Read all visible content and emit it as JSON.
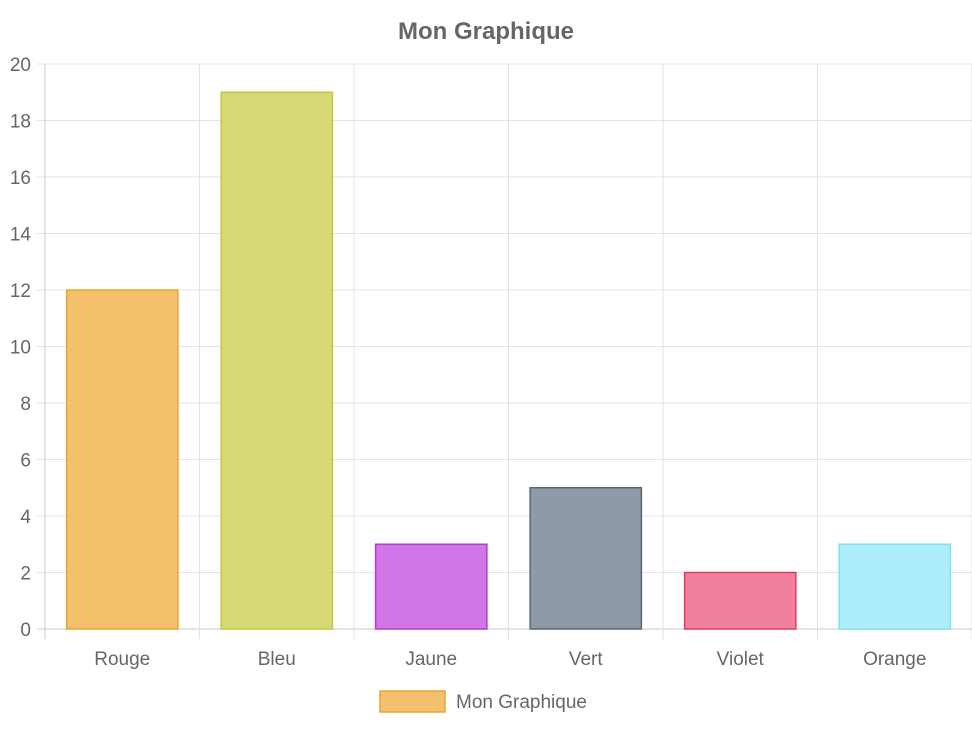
{
  "chart_data": {
    "type": "bar",
    "title": "Mon Graphique",
    "categories": [
      "Rouge",
      "Bleu",
      "Jaune",
      "Vert",
      "Violet",
      "Orange"
    ],
    "series": [
      {
        "name": "Mon Graphique",
        "values": [
          12,
          19,
          3,
          5,
          2,
          3
        ]
      }
    ],
    "bar_colors": [
      {
        "fill": "#f3c16b",
        "stroke": "#e8a534"
      },
      {
        "fill": "#d6d775",
        "stroke": "#c6c740"
      },
      {
        "fill": "#d176e6",
        "stroke": "#b63cd0"
      },
      {
        "fill": "#8f9aa9",
        "stroke": "#5b6675"
      },
      {
        "fill": "#f0819e",
        "stroke": "#e03a66"
      },
      {
        "fill": "#aeeefb",
        "stroke": "#7fe1f5"
      }
    ],
    "ylim": [
      0,
      20
    ],
    "y_ticks": [
      "0",
      "2",
      "4",
      "6",
      "8",
      "10",
      "12",
      "14",
      "16",
      "18",
      "20"
    ],
    "grid": true,
    "legend": "bottom",
    "legend_color": {
      "fill": "#f3c16b",
      "stroke": "#e8a534"
    }
  }
}
